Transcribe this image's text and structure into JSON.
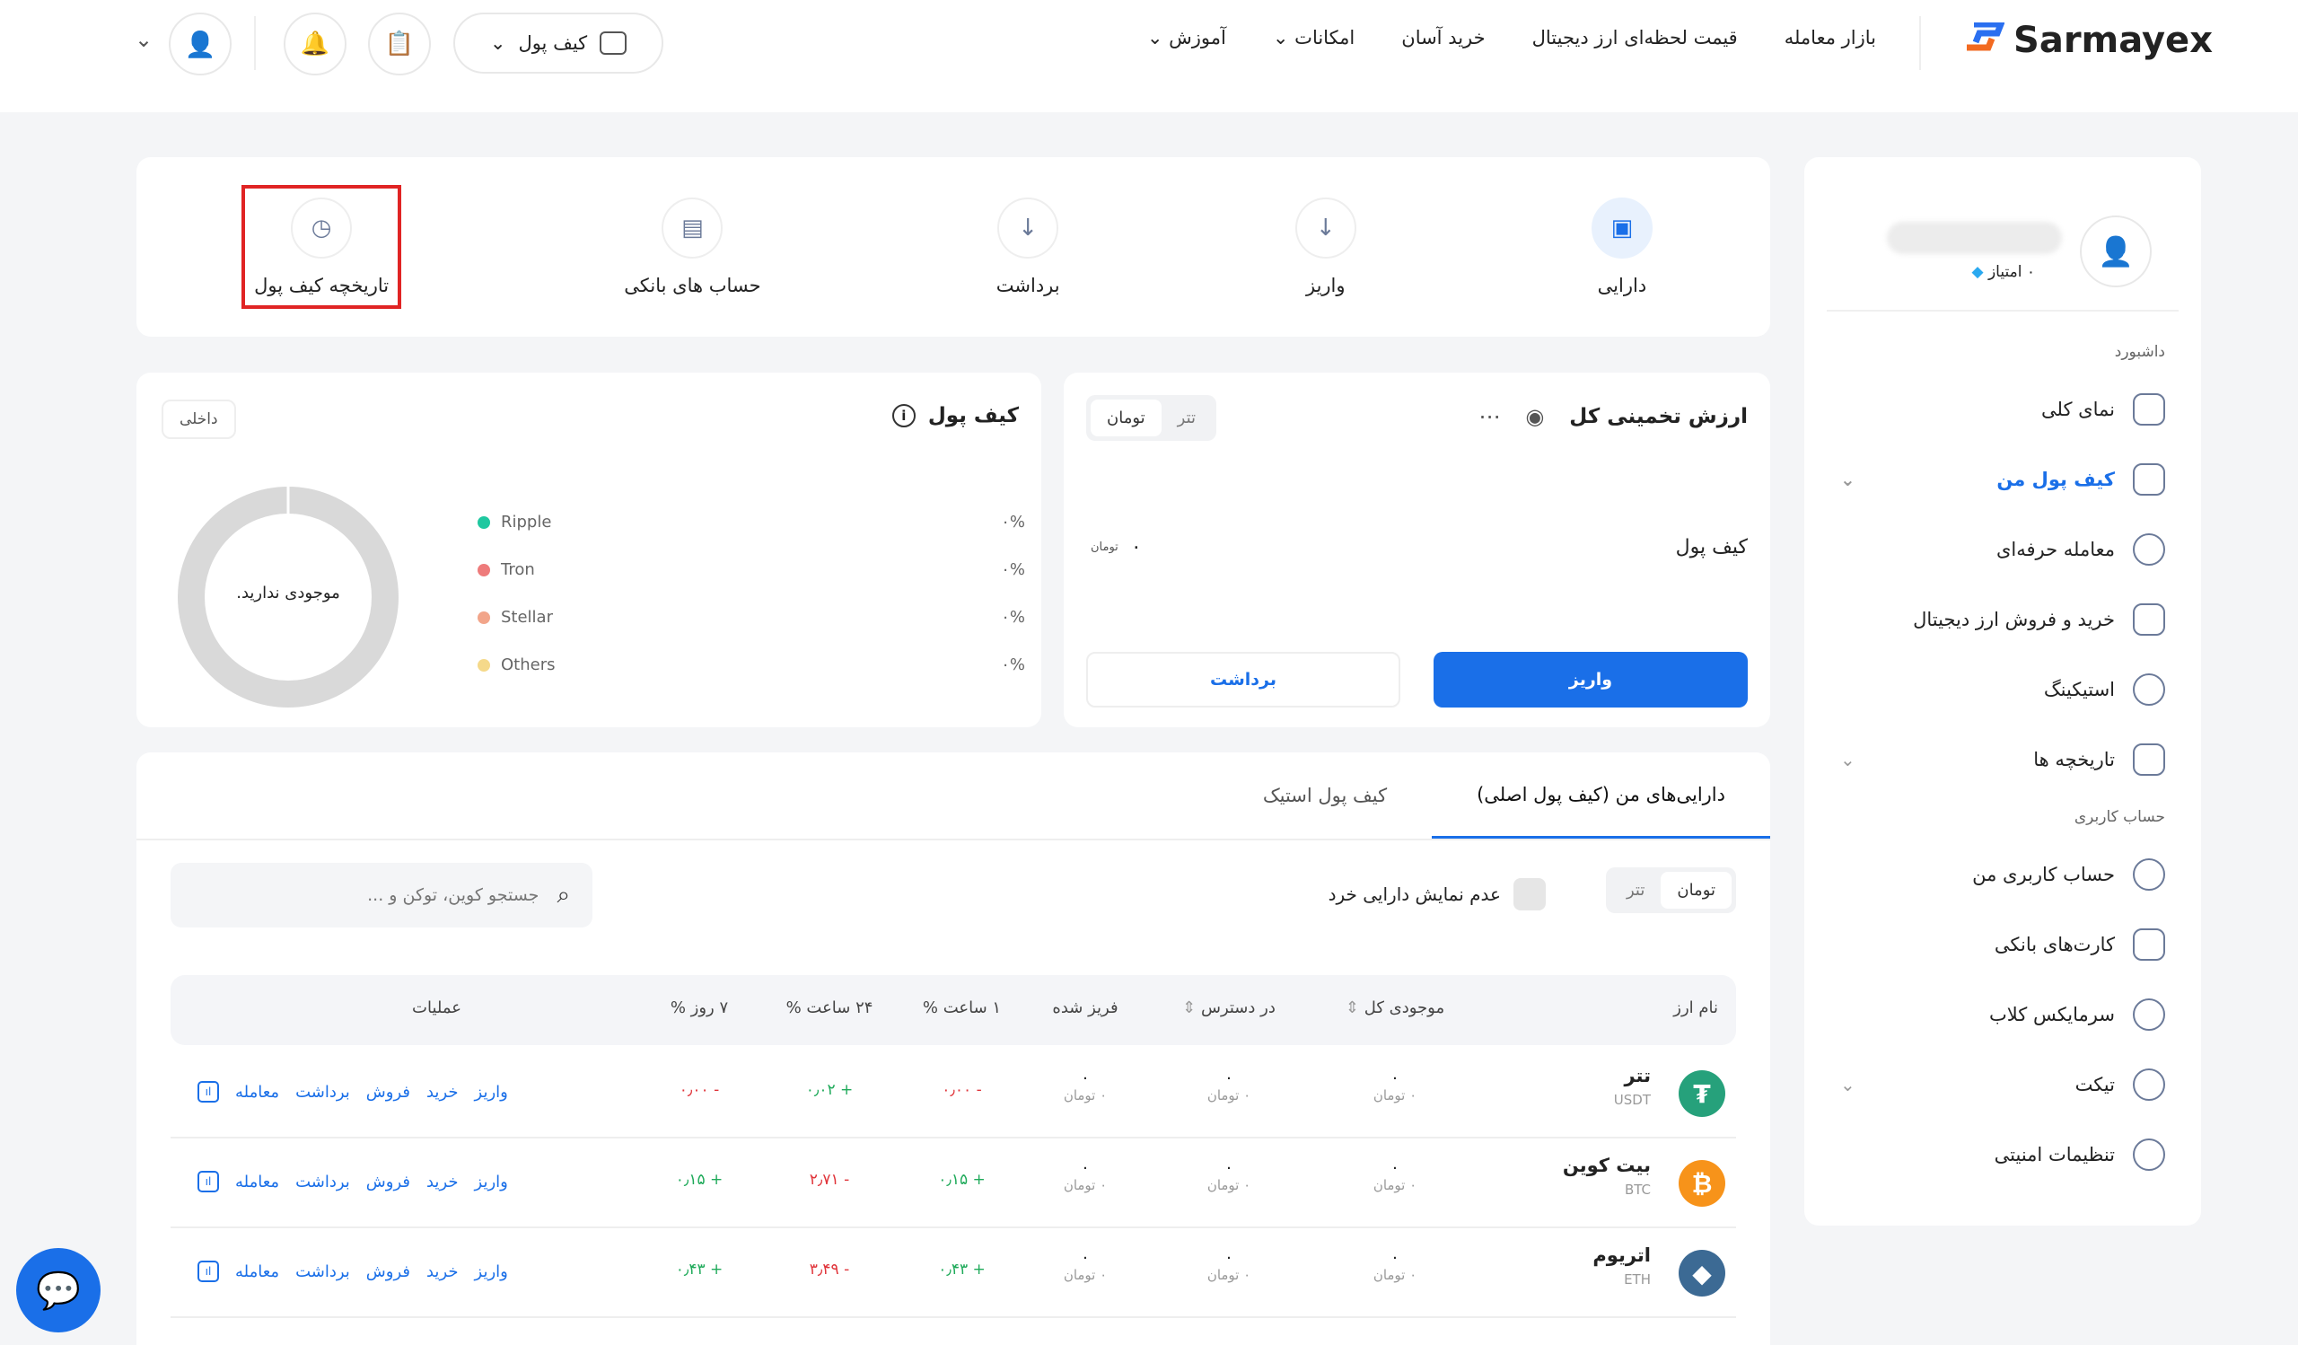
{
  "header": {
    "brand": "Sarmayex",
    "nav": [
      "بازار معامله",
      "قیمت لحظه‌ای ارز دیجیتال",
      "خرید آسان",
      "امکانات",
      "آموزش"
    ],
    "wallet_label": "کیف پول"
  },
  "sidebar": {
    "points": "۰ امتیاز",
    "section_dashboard": "داشبورد",
    "items": [
      {
        "label": "نمای کلی"
      },
      {
        "label": "کیف پول من",
        "active": true
      },
      {
        "label": "معامله حرفه‌ای"
      },
      {
        "label": "خرید و فروش ارز دیجیتال"
      },
      {
        "label": "استیکینگ"
      },
      {
        "label": "تاریخچه ها"
      }
    ],
    "section_account": "حساب کاربری",
    "account_items": [
      {
        "label": "حساب کاربری من"
      },
      {
        "label": "کارت‌های بانکی"
      },
      {
        "label": "سرمایکس کلاب"
      },
      {
        "label": "تیکت"
      },
      {
        "label": "تنظیمات امنیتی"
      }
    ]
  },
  "actions": [
    "دارایی",
    "واریز",
    "برداشت",
    "حساب های بانکی",
    "تاریخچه کیف پول"
  ],
  "estimate": {
    "title": "ارزش تخمینی کل",
    "toggle": [
      "تومان",
      "تتر"
    ],
    "wallet_label": "کیف پول",
    "value": "۰",
    "unit": "تومان",
    "deposit": "واریز",
    "withdraw": "برداشت"
  },
  "wallet": {
    "title": "کیف پول",
    "badge": "داخلی",
    "empty": "موجودی ندارید.",
    "legend": [
      {
        "name": "Ripple",
        "pct": "۰%",
        "color": "#1fc8a0"
      },
      {
        "name": "Tron",
        "pct": "۰%",
        "color": "#ee7b7b"
      },
      {
        "name": "Stellar",
        "pct": "۰%",
        "color": "#f2a58a"
      },
      {
        "name": "Others",
        "pct": "۰%",
        "color": "#f5d98a"
      }
    ]
  },
  "assets": {
    "tabs": [
      "دارایی‌های من (کیف پول اصلی)",
      "کیف پول استیک"
    ],
    "toggle": [
      "تومان",
      "تتر"
    ],
    "hide_small": "عدم نمایش دارایی خرد",
    "search_placeholder": "جستجو کوین، توکن و ...",
    "columns": [
      "نام ارز",
      "موجودی کل",
      "در دسترس",
      "فریز شده",
      "۱ ساعت %",
      "۲۴ ساعت %",
      "۷ روز %",
      "عملیات"
    ],
    "ops": [
      "واریز",
      "خرید",
      "فروش",
      "برداشت",
      "معامله"
    ],
    "rows": [
      {
        "name": "تتر",
        "symbol": "USDT",
        "color": "#26a17b",
        "glyph": "₮",
        "total": "۰",
        "avail": "۰",
        "frozen": "۰",
        "toman": "۰ تومان",
        "h1": "- ۰٫۰۰",
        "h24": "+ ۰٫۰۲",
        "d7": "- ۰٫۰۰",
        "s1": "neg",
        "s24": "pos",
        "s7": "neg"
      },
      {
        "name": "بیت کوین",
        "symbol": "BTC",
        "color": "#f7931a",
        "glyph": "₿",
        "total": "۰",
        "avail": "۰",
        "frozen": "۰",
        "toman": "۰ تومان",
        "h1": "+ ۰٫۱۵",
        "h24": "- ۲٫۷۱",
        "d7": "+ ۰٫۱۵",
        "s1": "pos",
        "s24": "neg",
        "s7": "pos"
      },
      {
        "name": "اتریوم",
        "symbol": "ETH",
        "color": "#3c6a94",
        "glyph": "◆",
        "total": "۰",
        "avail": "۰",
        "frozen": "۰",
        "toman": "۰ تومان",
        "h1": "+ ۰٫۴۳",
        "h24": "- ۳٫۴۹",
        "d7": "+ ۰٫۴۳",
        "s1": "pos",
        "s24": "neg",
        "s7": "pos"
      }
    ]
  }
}
